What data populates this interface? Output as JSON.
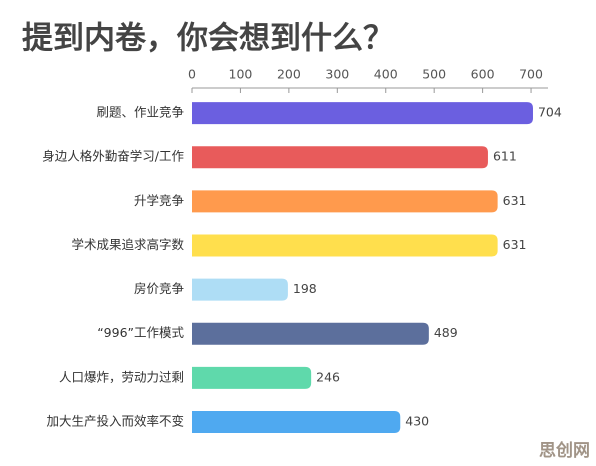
{
  "chart_data": {
    "type": "hbar",
    "title": "提到内卷，你会想到什么？",
    "categories": [
      "刷题、作业竞争",
      "身边人格外勤奋学习/工作",
      "升学竞争",
      "学术成果追求高字数",
      "房价竞争",
      "“996”工作模式",
      "人口爆炸，劳动力过剩",
      "加大生产投入而效率不变"
    ],
    "series": [
      {
        "values": [
          704,
          611,
          631,
          631,
          198,
          489,
          246,
          430
        ]
      }
    ],
    "colors": [
      "#6b5fe0",
      "#e85b5b",
      "#ff9a4d",
      "#ffdf4d",
      "#aeddf5",
      "#5c6f9c",
      "#5fd9ab",
      "#4fa9f0"
    ],
    "xlim": [
      0,
      735
    ],
    "xticks": [
      0,
      100,
      200,
      300,
      400,
      500,
      600,
      700
    ],
    "watermark": "思创网"
  }
}
